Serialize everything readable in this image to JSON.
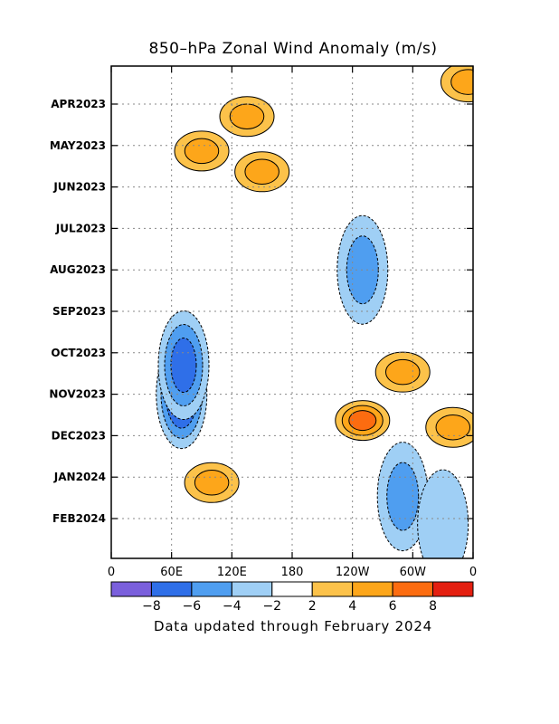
{
  "chart_data": {
    "type": "heatmap",
    "title": "850–hPa Zonal Wind Anomaly (m/s)",
    "footer": "Data updated through February 2024",
    "x_tick_labels": [
      "0",
      "60E",
      "120E",
      "180",
      "120W",
      "60W",
      "0"
    ],
    "y_tick_labels": [
      "APR2023",
      "MAY2023",
      "JUN2023",
      "JUL2023",
      "AUG2023",
      "SEP2023",
      "OCT2023",
      "NOV2023",
      "DEC2023",
      "JAN2024",
      "FEB2024"
    ],
    "x_range": [
      0,
      360
    ],
    "y_range": [
      "MAR2023",
      "FEB2024"
    ],
    "grid": true,
    "colorbar": {
      "labels": [
        "−8",
        "−6",
        "−4",
        "−2",
        "2",
        "4",
        "6",
        "8"
      ],
      "colors": [
        "#7a5fdc",
        "#2f6fe8",
        "#4f9ef0",
        "#9fcff5",
        "#ffffff",
        "#fcc24a",
        "#fda61a",
        "#fc6c10",
        "#e41f10"
      ]
    },
    "anomaly_features": [
      {
        "lon": 70,
        "date": "2023-11-01",
        "value": -8.5
      },
      {
        "lon": 72,
        "date": "2023-10-10",
        "value": -6
      },
      {
        "lon": 100,
        "date": "2024-01-05",
        "value": 5
      },
      {
        "lon": 135,
        "date": "2023-04-10",
        "value": 4.5
      },
      {
        "lon": 150,
        "date": "2023-05-20",
        "value": 5
      },
      {
        "lon": 250,
        "date": "2023-11-20",
        "value": 6
      },
      {
        "lon": 290,
        "date": "2023-10-15",
        "value": 5
      },
      {
        "lon": 340,
        "date": "2023-11-25",
        "value": 5
      },
      {
        "lon": 355,
        "date": "2023-03-15",
        "value": 4
      },
      {
        "lon": 90,
        "date": "2023-05-05",
        "value": 4
      },
      {
        "lon": 250,
        "date": "2023-08-01",
        "value": -4
      },
      {
        "lon": 290,
        "date": "2024-01-15",
        "value": -4
      },
      {
        "lon": 330,
        "date": "2024-02-05",
        "value": -3
      }
    ]
  }
}
